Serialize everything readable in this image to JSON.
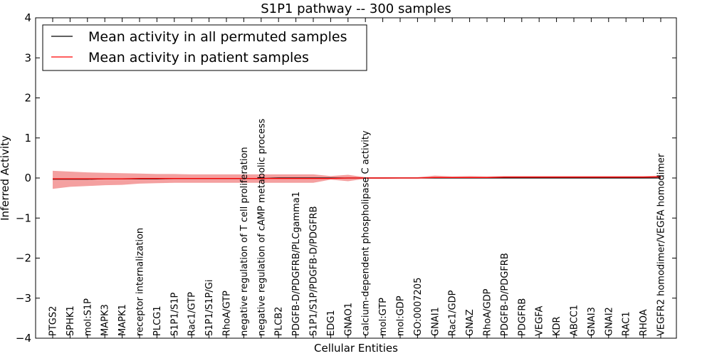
{
  "chart_data": {
    "type": "line",
    "title": "S1P1 pathway -- 300 samples",
    "xlabel": "Cellular Entities",
    "ylabel": "Inferred Activity",
    "ylim": [
      -4,
      4
    ],
    "yticks": [
      "4",
      "3",
      "2",
      "1",
      "0",
      "−1",
      "−2",
      "−3",
      "−4"
    ],
    "ytick_values": [
      4,
      3,
      2,
      1,
      0,
      -1,
      -2,
      -3,
      -4
    ],
    "legend_position": "top-left",
    "categories": [
      "PTGS2",
      "SPHK1",
      "mol:S1P",
      "MAPK3",
      "MAPK1",
      "receptor internalization",
      "PLCG1",
      "S1P1/S1P",
      "Rac1/GTP",
      "S1P1/S1P/Gi",
      "RhoA/GTP",
      "negative regulation of T cell proliferation",
      "negative regulation of cAMP metabolic process",
      "PLCB2",
      "PDGFB-D/PDGFRB/PLCgamma1",
      "S1P1/S1P/PDGFB-D/PDGFRB",
      "EDG1",
      "GNAO1",
      "calcium-dependent phospholipase C activity",
      "mol:GTP",
      "mol:GDP",
      "GO:0007205",
      "GNAI1",
      "Rac1/GDP",
      "GNAZ",
      "RhoA/GDP",
      "PDGFB-D/PDGFRB",
      "PDGFRB",
      "VEGFA",
      "KDR",
      "ABCC1",
      "GNAI3",
      "GNAI2",
      "RAC1",
      "RHOA",
      "VEGFR2 homodimer/VEGFA homodimer"
    ],
    "series": [
      {
        "name": "Mean activity in all permuted samples",
        "color": "#000000",
        "values": [
          -0.03,
          -0.03,
          -0.03,
          -0.02,
          -0.02,
          -0.02,
          -0.02,
          -0.01,
          -0.01,
          -0.01,
          -0.01,
          -0.01,
          -0.01,
          0.0,
          0.0,
          0.0,
          0.0,
          0.0,
          0.0,
          0.0,
          0.0,
          0.0,
          0.0,
          0.0,
          0.0,
          0.0,
          0.0,
          0.0,
          0.0,
          0.0,
          0.0,
          0.0,
          0.0,
          0.0,
          0.0,
          0.0
        ]
      },
      {
        "name": "Mean activity in patient samples",
        "color": "#ff0000",
        "values": [
          -0.02,
          -0.02,
          -0.02,
          -0.02,
          -0.02,
          -0.01,
          -0.01,
          -0.01,
          -0.01,
          -0.01,
          -0.01,
          -0.01,
          -0.01,
          -0.01,
          -0.01,
          -0.01,
          -0.01,
          0.0,
          0.0,
          0.0,
          0.0,
          0.0,
          0.01,
          0.01,
          0.01,
          0.01,
          0.02,
          0.02,
          0.02,
          0.02,
          0.02,
          0.02,
          0.02,
          0.02,
          0.02,
          0.03
        ],
        "band_upper": [
          0.18,
          0.16,
          0.14,
          0.13,
          0.12,
          0.11,
          0.1,
          0.1,
          0.09,
          0.09,
          0.09,
          0.09,
          0.09,
          0.09,
          0.09,
          0.09,
          0.05,
          0.08,
          0.02,
          0.02,
          0.02,
          0.02,
          0.06,
          0.04,
          0.05,
          0.04,
          0.05,
          0.05,
          0.05,
          0.05,
          0.05,
          0.05,
          0.05,
          0.05,
          0.05,
          0.06
        ],
        "band_lower": [
          -0.27,
          -0.22,
          -0.2,
          -0.18,
          -0.17,
          -0.14,
          -0.13,
          -0.12,
          -0.12,
          -0.12,
          -0.12,
          -0.12,
          -0.12,
          -0.12,
          -0.12,
          -0.12,
          -0.04,
          -0.08,
          -0.02,
          -0.02,
          -0.01,
          -0.01,
          0.0,
          0.0,
          0.0,
          0.0,
          0.0,
          0.0,
          0.0,
          0.0,
          0.0,
          0.0,
          0.0,
          0.0,
          0.0,
          0.0
        ],
        "band_color": "#f08080"
      }
    ]
  }
}
